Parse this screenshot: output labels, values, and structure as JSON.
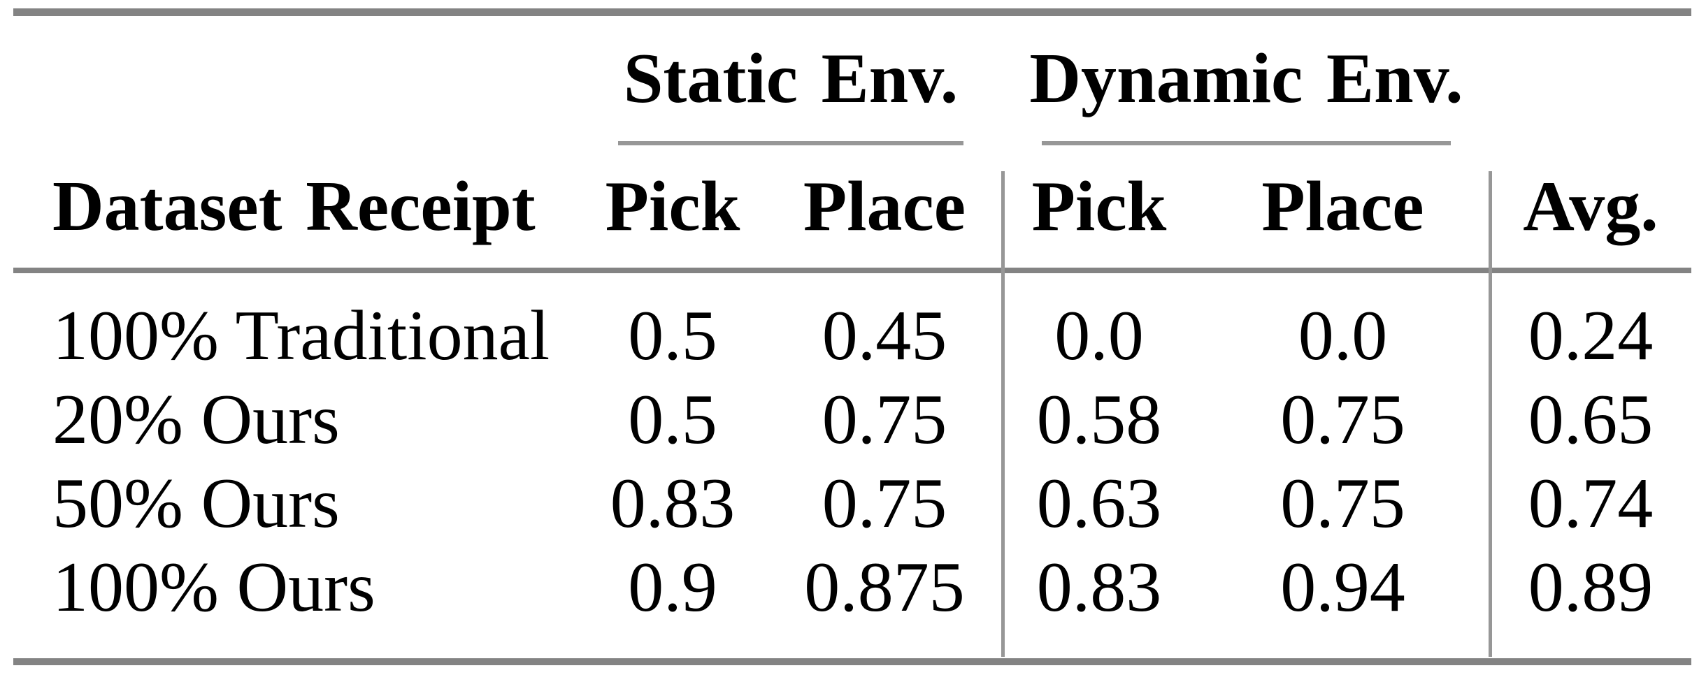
{
  "colors": {
    "background": "#ffffff",
    "text": "#000000",
    "rule_heavy": "#838383",
    "rule_light": "#979797"
  },
  "table": {
    "group_headers": [
      "Static Env.",
      "Dynamic Env."
    ],
    "columns": [
      "Dataset Receipt",
      "Pick",
      "Place",
      "Pick",
      "Place",
      "Avg."
    ],
    "rows": [
      {
        "cells": [
          "100% Traditional",
          "0.5",
          "0.45",
          "0.0",
          "0.0",
          "0.24"
        ]
      },
      {
        "cells": [
          "20% Ours",
          "0.5",
          "0.75",
          "0.58",
          "0.75",
          "0.65"
        ]
      },
      {
        "cells": [
          "50% Ours",
          "0.83",
          "0.75",
          "0.63",
          "0.75",
          "0.74"
        ]
      },
      {
        "cells": [
          "100% Ours",
          "0.9",
          "0.875",
          "0.83",
          "0.94",
          "0.89"
        ]
      }
    ]
  },
  "chart_data": {
    "type": "table",
    "column_groups": [
      {
        "label": "Static Env.",
        "columns": [
          "Pick",
          "Place"
        ]
      },
      {
        "label": "Dynamic Env.",
        "columns": [
          "Pick",
          "Place"
        ]
      }
    ],
    "columns": [
      "Dataset Receipt",
      "Static Env. Pick",
      "Static Env. Place",
      "Dynamic Env. Pick",
      "Dynamic Env. Place",
      "Avg."
    ],
    "rows": [
      [
        "100% Traditional",
        0.5,
        0.45,
        0.0,
        0.0,
        0.24
      ],
      [
        "20% Ours",
        0.5,
        0.75,
        0.58,
        0.75,
        0.65
      ],
      [
        "50% Ours",
        0.83,
        0.75,
        0.63,
        0.75,
        0.74
      ],
      [
        "100% Ours",
        0.9,
        0.875,
        0.83,
        0.94,
        0.89
      ]
    ]
  }
}
